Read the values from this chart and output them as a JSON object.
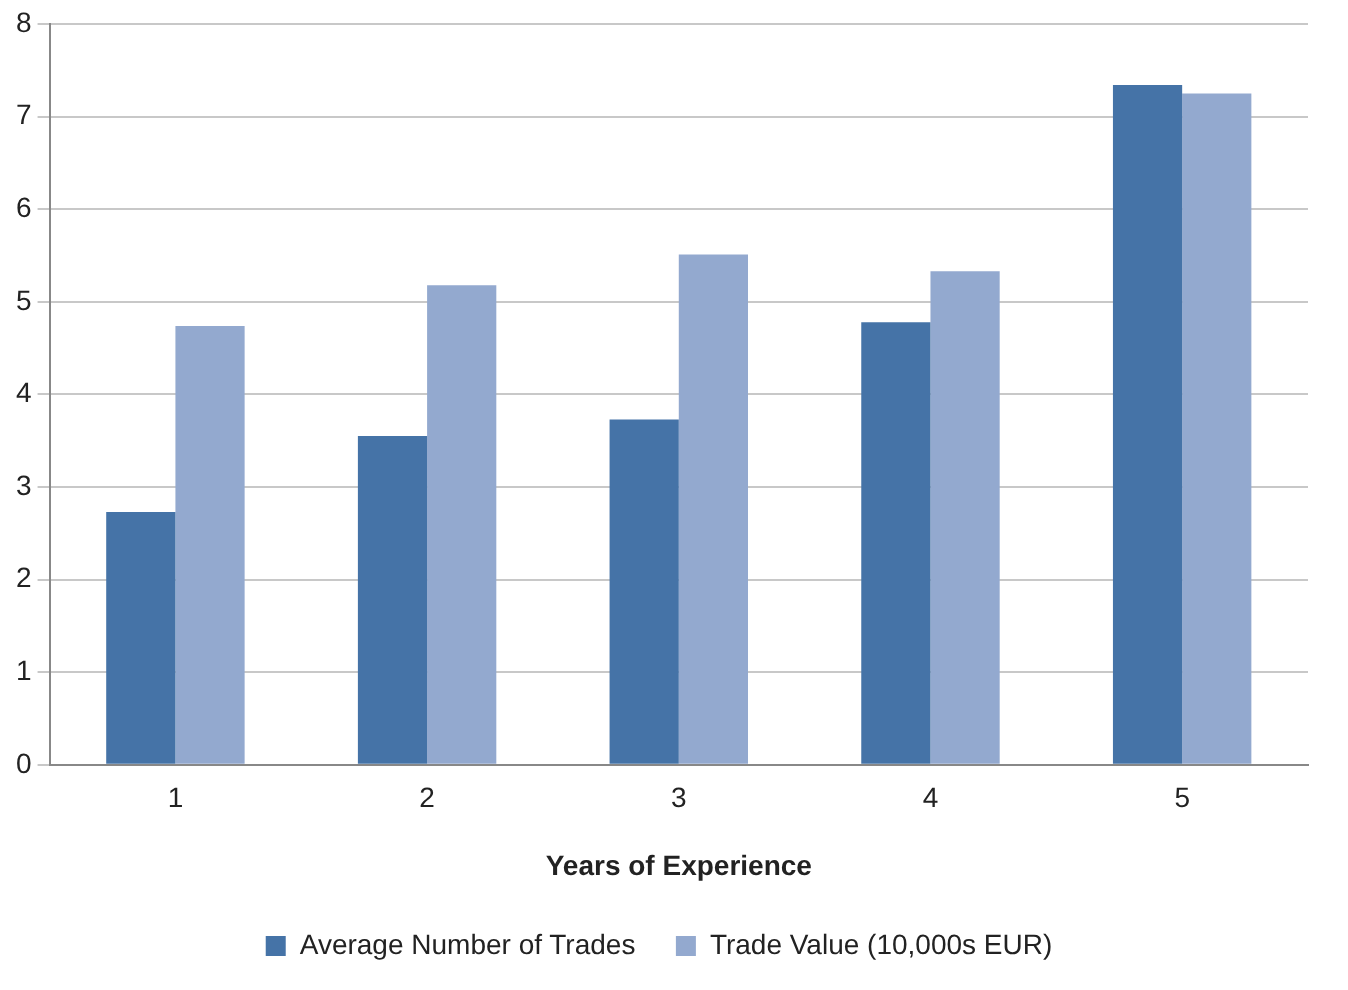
{
  "chart_data": {
    "type": "bar",
    "xlabel": "Years of Experience",
    "categories": [
      "1",
      "2",
      "3",
      "4",
      "5"
    ],
    "series": [
      {
        "name": "Average Number of Trades",
        "color": "#4573a7",
        "values": [
          2.73,
          3.55,
          3.73,
          4.78,
          7.34
        ]
      },
      {
        "name": "Trade Value (10,000s EUR)",
        "color": "#93a9cf",
        "values": [
          4.74,
          5.18,
          5.51,
          5.33,
          7.25
        ]
      }
    ],
    "ylim": [
      0,
      8
    ],
    "yticks": [
      0,
      1,
      2,
      3,
      4,
      5,
      6,
      7,
      8
    ],
    "grid": "y",
    "legend": "bottom"
  }
}
